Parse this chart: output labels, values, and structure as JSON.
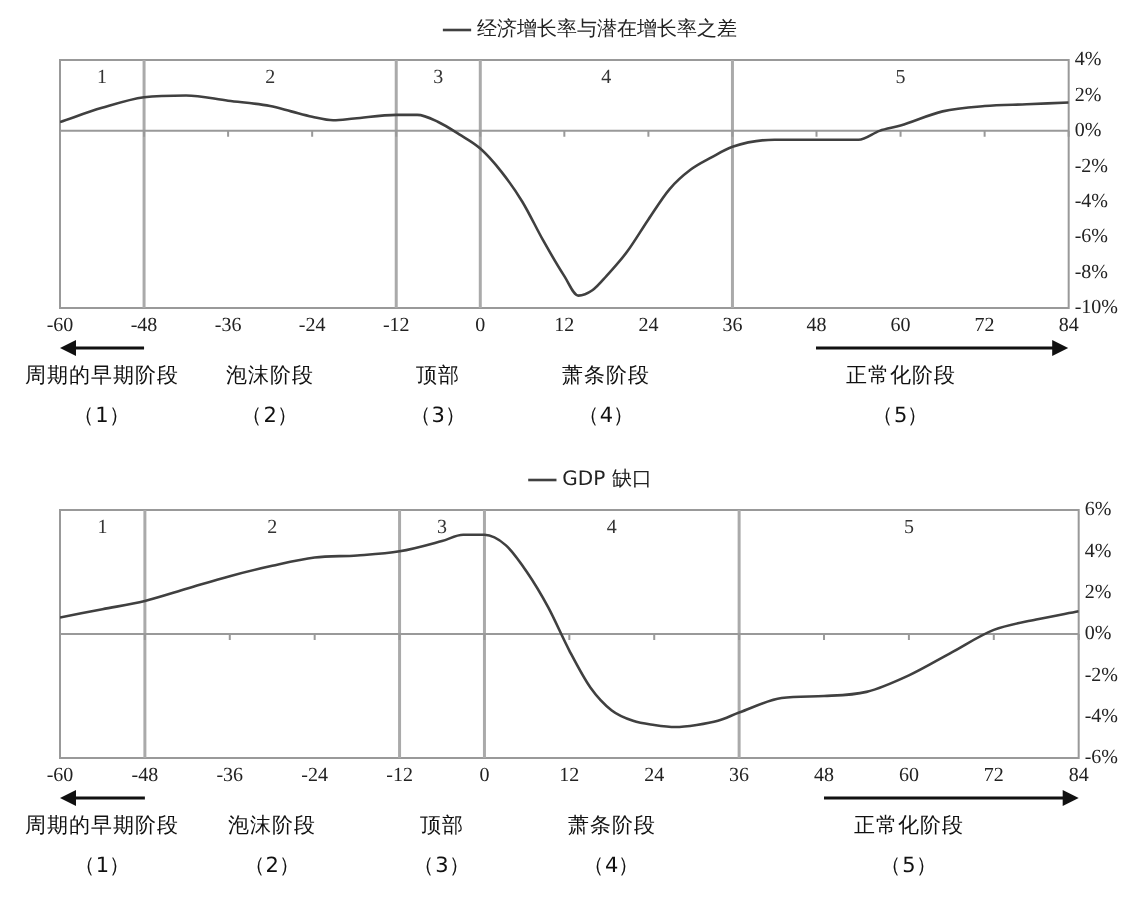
{
  "chart_data": [
    {
      "type": "line",
      "legend": "top",
      "marker": "none",
      "line_style": "solid",
      "grid": false,
      "xlim": [
        -60,
        84
      ],
      "xticks": [
        -60,
        -48,
        -36,
        -24,
        -12,
        0,
        12,
        24,
        36,
        48,
        60,
        72,
        84
      ],
      "ylim": [
        -10,
        4
      ],
      "yticks": [
        {
          "value": -10,
          "label": "-10%"
        },
        {
          "value": -8,
          "label": "-8%"
        },
        {
          "value": -6,
          "label": "-6%"
        },
        {
          "value": -4,
          "label": "-4%"
        },
        {
          "value": -2,
          "label": "-2%"
        },
        {
          "value": 0,
          "label": "0%"
        },
        {
          "value": 2,
          "label": "2%"
        },
        {
          "value": 4,
          "label": "4%"
        }
      ],
      "ref_lines": [
        {
          "axis": "x",
          "value": -48,
          "color": "#aaaaaa"
        },
        {
          "axis": "x",
          "value": -12,
          "color": "#aaaaaa"
        },
        {
          "axis": "x",
          "value": 0,
          "color": "#aaaaaa"
        },
        {
          "axis": "x",
          "value": 36,
          "color": "#aaaaaa"
        }
      ],
      "annotations": [
        "1",
        "2",
        "3",
        "4",
        "5",
        "周期的早期阶段",
        "泡沫阶段",
        "顶部",
        "萧条阶段",
        "正常化阶段",
        "（1）",
        "（2）",
        "（3）",
        "（4）",
        "（5）"
      ],
      "series": [
        {
          "name": "经济增长率与潜在增长率之差",
          "color": "#404040",
          "x": [
            -60,
            -54,
            -48,
            -42,
            -36,
            -30,
            -27,
            -24,
            -21,
            -18,
            -12,
            -9,
            -6,
            -3,
            0,
            3,
            6,
            9,
            12,
            14,
            16,
            18,
            21,
            24,
            27,
            30,
            33,
            36,
            42,
            48,
            54,
            57,
            60,
            66,
            72,
            78,
            84
          ],
          "values": [
            0.5,
            1.3,
            1.9,
            2.0,
            1.7,
            1.4,
            1.1,
            0.8,
            0.6,
            0.7,
            0.9,
            0.9,
            0.5,
            -0.2,
            -1.0,
            -2.3,
            -4.0,
            -6.2,
            -8.2,
            -9.3,
            -9.0,
            -8.2,
            -6.8,
            -5.0,
            -3.3,
            -2.2,
            -1.5,
            -0.9,
            -0.5,
            -0.5,
            -0.5,
            0,
            0.3,
            1.1,
            1.4,
            1.5,
            1.6
          ]
        }
      ]
    },
    {
      "type": "line",
      "legend": "top",
      "marker": "none",
      "line_style": "solid",
      "grid": false,
      "xlim": [
        -60,
        84
      ],
      "xticks": [
        -60,
        -48,
        -36,
        -24,
        -12,
        0,
        12,
        24,
        36,
        48,
        60,
        72,
        84
      ],
      "ylim": [
        -6,
        6
      ],
      "yticks": [
        {
          "value": -6,
          "label": "-6%"
        },
        {
          "value": -4,
          "label": "-4%"
        },
        {
          "value": -2,
          "label": "-2%"
        },
        {
          "value": 0,
          "label": "0%"
        },
        {
          "value": 2,
          "label": "2%"
        },
        {
          "value": 4,
          "label": "4%"
        },
        {
          "value": 6,
          "label": "6%"
        }
      ],
      "ref_lines": [
        {
          "axis": "x",
          "value": -48,
          "color": "#aaaaaa"
        },
        {
          "axis": "x",
          "value": -12,
          "color": "#aaaaaa"
        },
        {
          "axis": "x",
          "value": 0,
          "color": "#aaaaaa"
        },
        {
          "axis": "x",
          "value": 36,
          "color": "#aaaaaa"
        }
      ],
      "annotations": [
        "1",
        "2",
        "3",
        "4",
        "5",
        "周期的早期阶段",
        "泡沫阶段",
        "顶部",
        "萧条阶段",
        "正常化阶段",
        "（1）",
        "（2）",
        "（3）",
        "（4）",
        "（5）"
      ],
      "series": [
        {
          "name": "GDP 缺口",
          "color": "#404040",
          "x": [
            -60,
            -54,
            -48,
            -42,
            -36,
            -30,
            -24,
            -18,
            -12,
            -6,
            -3,
            0,
            3,
            6,
            9,
            12,
            15,
            18,
            21,
            24,
            27,
            30,
            33,
            36,
            42,
            48,
            54,
            60,
            66,
            72,
            78,
            84
          ],
          "values": [
            0.8,
            1.2,
            1.6,
            2.2,
            2.8,
            3.3,
            3.7,
            3.8,
            4.0,
            4.5,
            4.8,
            4.8,
            4.3,
            3.0,
            1.3,
            -0.8,
            -2.6,
            -3.7,
            -4.2,
            -4.4,
            -4.5,
            -4.4,
            -4.2,
            -3.8,
            -3.1,
            -3.0,
            -2.8,
            -2.0,
            -0.9,
            0.2,
            0.7,
            1.1
          ]
        }
      ]
    }
  ]
}
